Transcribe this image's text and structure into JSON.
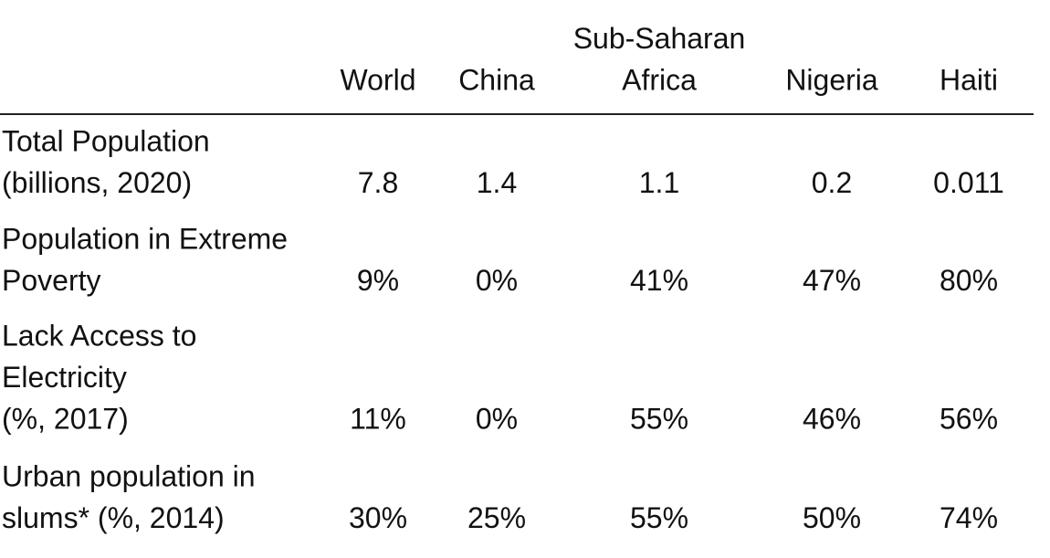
{
  "table": {
    "columns": [
      [
        "World"
      ],
      [
        "China"
      ],
      [
        "Sub-Saharan",
        "Africa"
      ],
      [
        "Nigeria"
      ],
      [
        "Haiti"
      ]
    ],
    "rows": [
      {
        "label": [
          "Total Population",
          "(billions, 2020)"
        ],
        "values": [
          "7.8",
          "1.4",
          "1.1",
          "0.2",
          "0.011"
        ]
      },
      {
        "label": [
          "Population in Extreme",
          "Poverty"
        ],
        "values": [
          "9%",
          "0%",
          "41%",
          "47%",
          "80%"
        ]
      },
      {
        "label": [
          "Lack Access to",
          "Electricity",
          "(%, 2017)"
        ],
        "values": [
          "11%",
          "0%",
          "55%",
          "46%",
          "56%"
        ]
      },
      {
        "label": [
          "Urban population in",
          "slums* (%, 2014)"
        ],
        "values": [
          "30%",
          "25%",
          "55%",
          "50%",
          "74%"
        ]
      }
    ]
  }
}
